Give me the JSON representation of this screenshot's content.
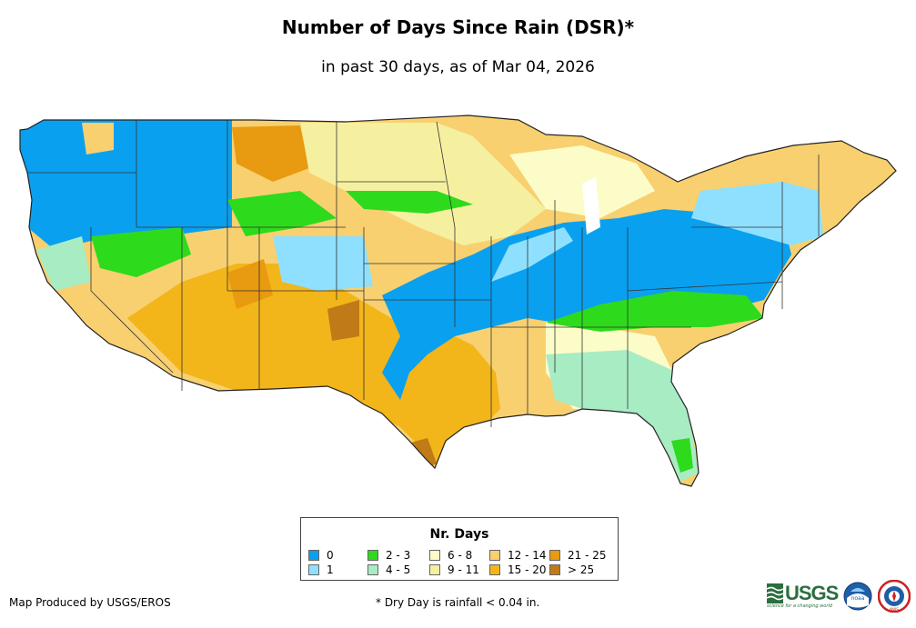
{
  "title": "Number of Days Since Rain (DSR)*",
  "subtitle": "in past 30 days, as of Mar 04, 2026",
  "legend": {
    "title": "Nr. Days",
    "items": [
      {
        "label": "0",
        "color": "#0aa0f0"
      },
      {
        "label": "1",
        "color": "#8fe0ff"
      },
      {
        "label": "2 - 3",
        "color": "#2ddb1c"
      },
      {
        "label": "4 - 5",
        "color": "#a8ecc4"
      },
      {
        "label": "6 - 8",
        "color": "#fcfcc8"
      },
      {
        "label": "9 - 11",
        "color": "#f5f0a0"
      },
      {
        "label": "12 - 14",
        "color": "#f8d070"
      },
      {
        "label": "15 - 20",
        "color": "#f2b51a"
      },
      {
        "label": "21 - 25",
        "color": "#e89a10"
      },
      {
        "label": "> 25",
        "color": "#c07a18"
      }
    ]
  },
  "footer": {
    "credit": "Map Produced by USGS/EROS",
    "note": "* Dry Day is rainfall < 0.04 in."
  },
  "logos": {
    "usgs": "USGS",
    "usgs_tagline": "science for a changing world",
    "noaa": "noaa",
    "nws": "NWS"
  }
}
